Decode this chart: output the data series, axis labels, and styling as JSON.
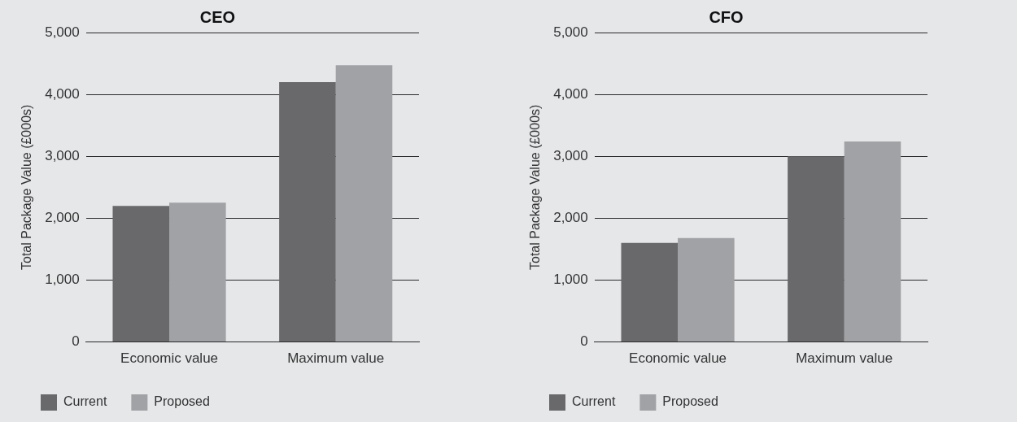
{
  "chart_data": [
    {
      "type": "bar",
      "title": "CEO",
      "ylabel": "Total Package Value (£000s)",
      "categories": [
        "Economic value",
        "Maximum value"
      ],
      "series": [
        {
          "name": "Current",
          "color": "#69696b",
          "values": [
            2200,
            4200
          ]
        },
        {
          "name": "Proposed",
          "color": "#a1a2a5",
          "values": [
            2250,
            4470
          ]
        }
      ],
      "ylim": [
        0,
        5000
      ],
      "yticks": [
        {
          "value": 0,
          "label": "0"
        },
        {
          "value": 1000,
          "label": "1,000"
        },
        {
          "value": 2000,
          "label": "2,000"
        },
        {
          "value": 3000,
          "label": "3,000"
        },
        {
          "value": 4000,
          "label": "4,000"
        },
        {
          "value": 5000,
          "label": "5,000"
        }
      ],
      "grid": "y",
      "legend": "bottom left"
    },
    {
      "type": "bar",
      "title": "CFO",
      "ylabel": "Total Package Value (£000s)",
      "categories": [
        "Economic value",
        "Maximum value"
      ],
      "series": [
        {
          "name": "Current",
          "color": "#69696b",
          "values": [
            1600,
            3000
          ]
        },
        {
          "name": "Proposed",
          "color": "#a1a2a5",
          "values": [
            1680,
            3240
          ]
        }
      ],
      "ylim": [
        0,
        5000
      ],
      "yticks": [
        {
          "value": 0,
          "label": "0"
        },
        {
          "value": 1000,
          "label": "1,000"
        },
        {
          "value": 2000,
          "label": "2,000"
        },
        {
          "value": 3000,
          "label": "3,000"
        },
        {
          "value": 4000,
          "label": "4,000"
        },
        {
          "value": 5000,
          "label": "5,000"
        }
      ],
      "grid": "y",
      "legend": "bottom left"
    }
  ]
}
